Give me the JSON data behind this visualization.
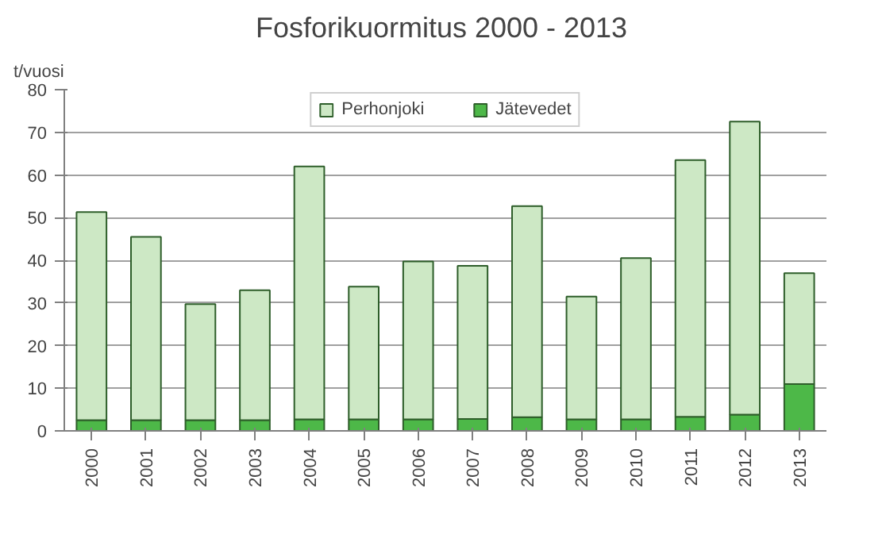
{
  "chart_data": {
    "type": "bar",
    "title": "Fosforikuormitus  2000 - 2013",
    "ylabel": "t/vuosi",
    "categories": [
      "2000",
      "2001",
      "2002",
      "2003",
      "2004",
      "2005",
      "2006",
      "2007",
      "2008",
      "2009",
      "2010",
      "2011",
      "2012",
      "2013"
    ],
    "stacked": true,
    "series": [
      {
        "name": "Jätevedet",
        "color": "#4db848",
        "values": [
          2.5,
          2.5,
          2.5,
          2.5,
          2.7,
          2.7,
          2.7,
          2.8,
          3.2,
          2.7,
          2.7,
          3.3,
          3.8,
          11
        ]
      },
      {
        "name": "Perhonjoki",
        "color": "#cde8c5",
        "values": [
          48.8,
          43,
          27.2,
          30.5,
          59.3,
          31.1,
          37,
          35.9,
          49.5,
          28.8,
          37.8,
          60.2,
          68.7,
          26
        ]
      }
    ],
    "ylim": [
      0,
      80
    ],
    "yticks": [
      0,
      10,
      20,
      30,
      40,
      50,
      60,
      70,
      80
    ],
    "grid": "y",
    "legend": "top"
  }
}
